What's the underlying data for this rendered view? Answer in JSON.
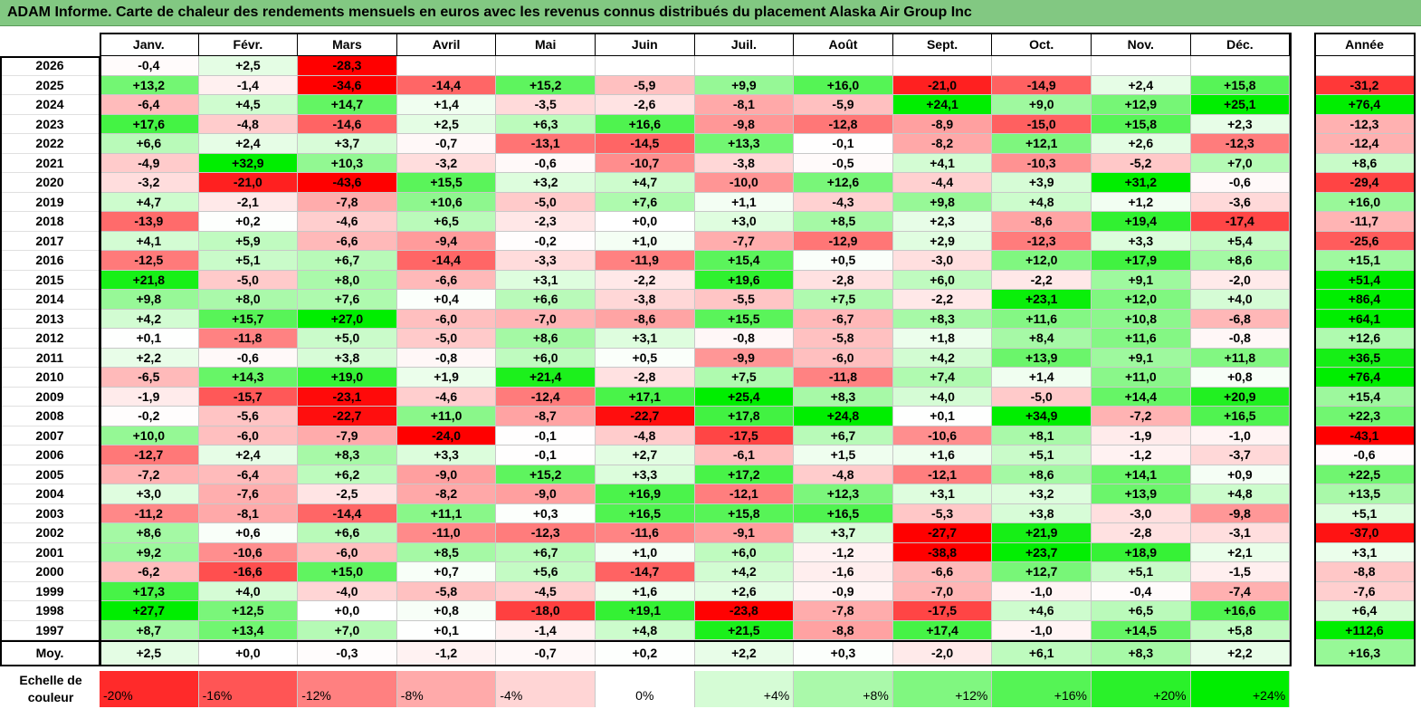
{
  "title": "ADAM Informe. Carte de chaleur des rendements mensuels en euros avec les revenus connus distribués du placement Alaska Air Group Inc",
  "chart_data": {
    "type": "heatmap",
    "months": [
      "Janv.",
      "Févr.",
      "Mars",
      "Avril",
      "Mai",
      "Juin",
      "Juil.",
      "Août",
      "Sept.",
      "Oct.",
      "Nov.",
      "Déc."
    ],
    "year_header": "Année",
    "rows": [
      {
        "label": "2026",
        "values": [
          "-0,4",
          "+2,5",
          "-28,3",
          "",
          "",
          "",
          "",
          "",
          "",
          "",
          "",
          ""
        ],
        "year": ""
      },
      {
        "label": "2025",
        "values": [
          "+13,2",
          "-1,4",
          "-34,6",
          "-14,4",
          "+15,2",
          "-5,9",
          "+9,9",
          "+16,0",
          "-21,0",
          "-14,9",
          "+2,4",
          "+15,8"
        ],
        "year": "-31,2"
      },
      {
        "label": "2024",
        "values": [
          "-6,4",
          "+4,5",
          "+14,7",
          "+1,4",
          "-3,5",
          "-2,6",
          "-8,1",
          "-5,9",
          "+24,1",
          "+9,0",
          "+12,9",
          "+25,1"
        ],
        "year": "+76,4"
      },
      {
        "label": "2023",
        "values": [
          "+17,6",
          "-4,8",
          "-14,6",
          "+2,5",
          "+6,3",
          "+16,6",
          "-9,8",
          "-12,8",
          "-8,9",
          "-15,0",
          "+15,8",
          "+2,3"
        ],
        "year": "-12,3"
      },
      {
        "label": "2022",
        "values": [
          "+6,6",
          "+2,4",
          "+3,7",
          "-0,7",
          "-13,1",
          "-14,5",
          "+13,3",
          "-0,1",
          "-8,2",
          "+12,1",
          "+2,6",
          "-12,3"
        ],
        "year": "-12,4"
      },
      {
        "label": "2021",
        "values": [
          "-4,9",
          "+32,9",
          "+10,3",
          "-3,2",
          "-0,6",
          "-10,7",
          "-3,8",
          "-0,5",
          "+4,1",
          "-10,3",
          "-5,2",
          "+7,0"
        ],
        "year": "+8,6"
      },
      {
        "label": "2020",
        "values": [
          "-3,2",
          "-21,0",
          "-43,6",
          "+15,5",
          "+3,2",
          "+4,7",
          "-10,0",
          "+12,6",
          "-4,4",
          "+3,9",
          "+31,2",
          "-0,6"
        ],
        "year": "-29,4"
      },
      {
        "label": "2019",
        "values": [
          "+4,7",
          "-2,1",
          "-7,8",
          "+10,6",
          "-5,0",
          "+7,6",
          "+1,1",
          "-4,3",
          "+9,8",
          "+4,8",
          "+1,2",
          "-3,6"
        ],
        "year": "+16,0"
      },
      {
        "label": "2018",
        "values": [
          "-13,9",
          "+0,2",
          "-4,6",
          "+6,5",
          "-2,3",
          "+0,0",
          "+3,0",
          "+8,5",
          "+2,3",
          "-8,6",
          "+19,4",
          "-17,4"
        ],
        "year": "-11,7"
      },
      {
        "label": "2017",
        "values": [
          "+4,1",
          "+5,9",
          "-6,6",
          "-9,4",
          "-0,2",
          "+1,0",
          "-7,7",
          "-12,9",
          "+2,9",
          "-12,3",
          "+3,3",
          "+5,4"
        ],
        "year": "-25,6"
      },
      {
        "label": "2016",
        "values": [
          "-12,5",
          "+5,1",
          "+6,7",
          "-14,4",
          "-3,3",
          "-11,9",
          "+15,4",
          "+0,5",
          "-3,0",
          "+12,0",
          "+17,9",
          "+8,6"
        ],
        "year": "+15,1"
      },
      {
        "label": "2015",
        "values": [
          "+21,8",
          "-5,0",
          "+8,0",
          "-6,6",
          "+3,1",
          "-2,2",
          "+19,6",
          "-2,8",
          "+6,0",
          "-2,2",
          "+9,1",
          "-2,0"
        ],
        "year": "+51,4"
      },
      {
        "label": "2014",
        "values": [
          "+9,8",
          "+8,0",
          "+7,6",
          "+0,4",
          "+6,6",
          "-3,8",
          "-5,5",
          "+7,5",
          "-2,2",
          "+23,1",
          "+12,0",
          "+4,0"
        ],
        "year": "+86,4"
      },
      {
        "label": "2013",
        "values": [
          "+4,2",
          "+15,7",
          "+27,0",
          "-6,0",
          "-7,0",
          "-8,6",
          "+15,5",
          "-6,7",
          "+8,3",
          "+11,6",
          "+10,8",
          "-6,8"
        ],
        "year": "+64,1"
      },
      {
        "label": "2012",
        "values": [
          "+0,1",
          "-11,8",
          "+5,0",
          "-5,0",
          "+8,6",
          "+3,1",
          "-0,8",
          "-5,8",
          "+1,8",
          "+8,4",
          "+11,6",
          "-0,8"
        ],
        "year": "+12,6"
      },
      {
        "label": "2011",
        "values": [
          "+2,2",
          "-0,6",
          "+3,8",
          "-0,8",
          "+6,0",
          "+0,5",
          "-9,9",
          "-6,0",
          "+4,2",
          "+13,9",
          "+9,1",
          "+11,8"
        ],
        "year": "+36,5"
      },
      {
        "label": "2010",
        "values": [
          "-6,5",
          "+14,3",
          "+19,0",
          "+1,9",
          "+21,4",
          "-2,8",
          "+7,5",
          "-11,8",
          "+7,4",
          "+1,4",
          "+11,0",
          "+0,8"
        ],
        "year": "+76,4"
      },
      {
        "label": "2009",
        "values": [
          "-1,9",
          "-15,7",
          "-23,1",
          "-4,6",
          "-12,4",
          "+17,1",
          "+25,4",
          "+8,3",
          "+4,0",
          "-5,0",
          "+14,4",
          "+20,9"
        ],
        "year": "+15,4"
      },
      {
        "label": "2008",
        "values": [
          "-0,2",
          "-5,6",
          "-22,7",
          "+11,0",
          "-8,7",
          "-22,7",
          "+17,8",
          "+24,8",
          "+0,1",
          "+34,9",
          "-7,2",
          "+16,5"
        ],
        "year": "+22,3"
      },
      {
        "label": "2007",
        "values": [
          "+10,0",
          "-6,0",
          "-7,9",
          "-24,0",
          "-0,1",
          "-4,8",
          "-17,5",
          "+6,7",
          "-10,6",
          "+8,1",
          "-1,9",
          "-1,0"
        ],
        "year": "-43,1"
      },
      {
        "label": "2006",
        "values": [
          "-12,7",
          "+2,4",
          "+8,3",
          "+3,3",
          "-0,1",
          "+2,7",
          "-6,1",
          "+1,5",
          "+1,6",
          "+5,1",
          "-1,2",
          "-3,7"
        ],
        "year": "-0,6"
      },
      {
        "label": "2005",
        "values": [
          "-7,2",
          "-6,4",
          "+6,2",
          "-9,0",
          "+15,2",
          "+3,3",
          "+17,2",
          "-4,8",
          "-12,1",
          "+8,6",
          "+14,1",
          "+0,9"
        ],
        "year": "+22,5"
      },
      {
        "label": "2004",
        "values": [
          "+3,0",
          "-7,6",
          "-2,5",
          "-8,2",
          "-9,0",
          "+16,9",
          "-12,1",
          "+12,3",
          "+3,1",
          "+3,2",
          "+13,9",
          "+4,8"
        ],
        "year": "+13,5"
      },
      {
        "label": "2003",
        "values": [
          "-11,2",
          "-8,1",
          "-14,4",
          "+11,1",
          "+0,3",
          "+16,5",
          "+15,8",
          "+16,5",
          "-5,3",
          "+3,8",
          "-3,0",
          "-9,8"
        ],
        "year": "+5,1"
      },
      {
        "label": "2002",
        "values": [
          "+8,6",
          "+0,6",
          "+6,6",
          "-11,0",
          "-12,3",
          "-11,6",
          "-9,1",
          "+3,7",
          "-27,7",
          "+21,9",
          "-2,8",
          "-3,1"
        ],
        "year": "-37,0"
      },
      {
        "label": "2001",
        "values": [
          "+9,2",
          "-10,6",
          "-6,0",
          "+8,5",
          "+6,7",
          "+1,0",
          "+6,0",
          "-1,2",
          "-38,8",
          "+23,7",
          "+18,9",
          "+2,1"
        ],
        "year": "+3,1"
      },
      {
        "label": "2000",
        "values": [
          "-6,2",
          "-16,6",
          "+15,0",
          "+0,7",
          "+5,6",
          "-14,7",
          "+4,2",
          "-1,6",
          "-6,6",
          "+12,7",
          "+5,1",
          "-1,5"
        ],
        "year": "-8,8"
      },
      {
        "label": "1999",
        "values": [
          "+17,3",
          "+4,0",
          "-4,0",
          "-5,8",
          "-4,5",
          "+1,6",
          "+2,6",
          "-0,9",
          "-7,0",
          "-1,0",
          "-0,4",
          "-7,4"
        ],
        "year": "-7,6"
      },
      {
        "label": "1998",
        "values": [
          "+27,7",
          "+12,5",
          "+0,0",
          "+0,8",
          "-18,0",
          "+19,1",
          "-23,8",
          "-7,8",
          "-17,5",
          "+4,6",
          "+6,5",
          "+16,6"
        ],
        "year": "+6,4"
      },
      {
        "label": "1997",
        "values": [
          "+8,7",
          "+13,4",
          "+7,0",
          "+0,1",
          "-1,4",
          "+4,8",
          "+21,5",
          "-8,8",
          "+17,4",
          "-1,0",
          "+14,5",
          "+5,8"
        ],
        "year": "+112,6"
      }
    ],
    "average": {
      "label": "Moy.",
      "values": [
        "+2,5",
        "+0,0",
        "-0,3",
        "-1,2",
        "-0,7",
        "+0,2",
        "+2,2",
        "+0,3",
        "-2,0",
        "+6,1",
        "+8,3",
        "+2,2"
      ],
      "year": "+16,3"
    },
    "scale": {
      "label": "Echelle de couleur",
      "stops": [
        "-20%",
        "-16%",
        "-12%",
        "-8%",
        "-4%",
        "0%",
        "+4%",
        "+8%",
        "+12%",
        "+16%",
        "+20%",
        "+24%"
      ],
      "stop_values": [
        -20,
        -16,
        -12,
        -8,
        -4,
        0,
        4,
        8,
        12,
        16,
        20,
        24
      ]
    },
    "colors": {
      "negative": "#ff0000",
      "positive": "#00ee00",
      "neutral": "#ffffff"
    }
  }
}
